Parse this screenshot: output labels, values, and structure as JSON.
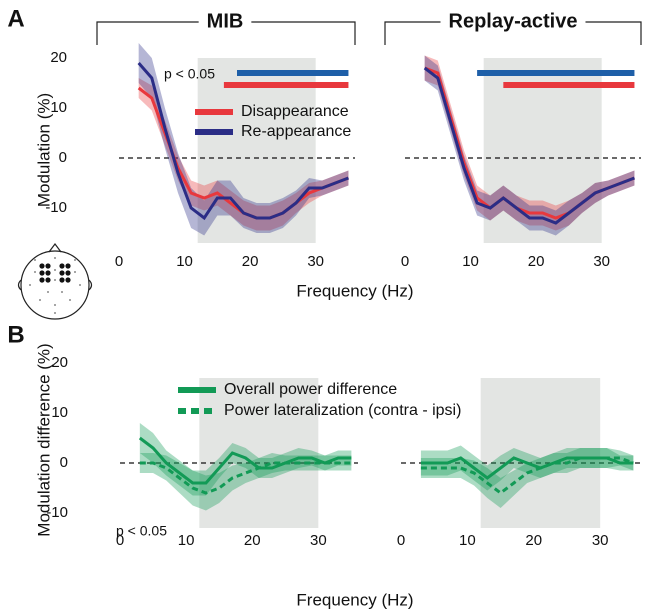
{
  "chart_data": [
    {
      "type": "line",
      "panel_label": "A",
      "title": "MIB",
      "xlabel": "Frequency (Hz)",
      "ylabel": "Modulation (%)",
      "annotation": "p < 0.05",
      "xlim": [
        0,
        36
      ],
      "ylim": [
        -17,
        23
      ],
      "xticks": [
        0,
        10,
        20,
        30
      ],
      "yticks": [
        -10,
        0,
        10,
        20
      ],
      "zero_line": true,
      "shade": [
        12,
        30
      ],
      "x": [
        3,
        5,
        7,
        9,
        11,
        13,
        15,
        17,
        19,
        21,
        23,
        25,
        27,
        29,
        31,
        33,
        35
      ],
      "series": [
        {
          "name": "Disappearance",
          "color": "#e8383d",
          "sig_color": "#e8383d",
          "sig": [
            16,
            35
          ],
          "values": [
            14,
            12,
            5,
            -2,
            -7,
            -8,
            -7,
            -9,
            -11,
            -12,
            -12,
            -11,
            -9,
            -7,
            -6,
            -5,
            -4
          ],
          "error": [
            2,
            2.5,
            2.5,
            2.5,
            2.5,
            2.5,
            2.5,
            2.5,
            2.5,
            2.5,
            2.5,
            2.5,
            2,
            2,
            1.5,
            1.5,
            1.5
          ]
        },
        {
          "name": "Re-appearance",
          "color": "#2b2d86",
          "sig_color": "#1e5fa8",
          "sig": [
            18,
            35
          ],
          "values": [
            19,
            16,
            6,
            -3,
            -10,
            -12,
            -8,
            -8,
            -11,
            -12,
            -12,
            -11,
            -9,
            -6,
            -6,
            -5,
            -4
          ],
          "error": [
            4,
            4,
            4,
            4,
            4,
            3.5,
            3.5,
            3.5,
            3,
            3,
            3,
            3,
            2.5,
            2,
            1.5,
            1.5,
            1.5
          ]
        }
      ]
    },
    {
      "type": "line",
      "title": "Replay-active",
      "xlim": [
        0,
        36
      ],
      "ylim": [
        -17,
        23
      ],
      "xticks": [
        0,
        10,
        20,
        30
      ],
      "zero_line": true,
      "shade": [
        12,
        30
      ],
      "x": [
        3,
        5,
        7,
        9,
        11,
        13,
        15,
        17,
        19,
        21,
        23,
        25,
        27,
        29,
        31,
        33,
        35
      ],
      "series": [
        {
          "color": "#e8383d",
          "sig_color": "#e8383d",
          "sig": [
            15,
            35
          ],
          "values": [
            18,
            17,
            8,
            -1,
            -8,
            -10,
            -8,
            -10,
            -11,
            -11,
            -12,
            -11,
            -9,
            -7,
            -6,
            -5,
            -4
          ],
          "error": [
            2.5,
            2.5,
            2.5,
            2.5,
            2.5,
            2.5,
            2.5,
            2.5,
            2.5,
            2.5,
            2.5,
            2.5,
            2,
            2,
            1.5,
            1.5,
            1.5
          ]
        },
        {
          "color": "#2b2d86",
          "sig_color": "#1e5fa8",
          "sig": [
            11,
            35
          ],
          "values": [
            18,
            16,
            7,
            -2,
            -9,
            -10,
            -8,
            -10,
            -12,
            -12,
            -13,
            -11,
            -9,
            -7,
            -6,
            -5,
            -4
          ],
          "error": [
            2.5,
            2.5,
            2.5,
            2.5,
            2.5,
            2.5,
            2.5,
            2.5,
            2.5,
            2.5,
            2.5,
            2.5,
            2,
            2,
            1.5,
            1.5,
            1.5
          ]
        }
      ]
    },
    {
      "type": "line",
      "panel_label": "B",
      "xlabel": "Frequency (Hz)",
      "ylabel": "Modulation difference (%)",
      "annotation": "p < 0.05",
      "xlim": [
        0,
        36
      ],
      "ylim": [
        -13,
        20
      ],
      "xticks": [
        0,
        10,
        20,
        30
      ],
      "yticks": [
        -10,
        0,
        10,
        20
      ],
      "zero_line": true,
      "shade": [
        12,
        30
      ],
      "x": [
        3,
        5,
        7,
        9,
        11,
        13,
        15,
        17,
        19,
        21,
        23,
        25,
        27,
        29,
        31,
        33,
        35
      ],
      "series": [
        {
          "name": "Overall power difference",
          "color": "#129a56",
          "dashed": false,
          "values": [
            5,
            3,
            0,
            -2,
            -4,
            -4,
            -1,
            2,
            1,
            -1,
            -1,
            0,
            1,
            1,
            0,
            1,
            1
          ],
          "error": [
            3,
            3,
            2.5,
            2.5,
            2.5,
            2.5,
            2,
            2,
            2,
            2,
            2,
            2,
            2,
            1.5,
            1.5,
            1.5,
            1.5
          ]
        },
        {
          "name": "Power lateralization (contra - ipsi)",
          "color": "#129a56",
          "dashed": true,
          "values": [
            0,
            0,
            -1,
            -3,
            -5,
            -6,
            -5,
            -3,
            -2,
            -1,
            0,
            0,
            0,
            0,
            0,
            0,
            0
          ],
          "error": [
            2,
            2,
            2.5,
            3,
            3.5,
            3.5,
            3,
            2.5,
            2,
            2,
            2,
            1.5,
            1.5,
            1.5,
            1.5,
            1.5,
            1.5
          ]
        }
      ]
    },
    {
      "type": "line",
      "xlim": [
        0,
        36
      ],
      "ylim": [
        -13,
        20
      ],
      "xticks": [
        0,
        10,
        20,
        30
      ],
      "zero_line": true,
      "shade": [
        12,
        30
      ],
      "x": [
        3,
        5,
        7,
        9,
        11,
        13,
        15,
        17,
        19,
        21,
        23,
        25,
        27,
        29,
        31,
        33,
        35
      ],
      "series": [
        {
          "color": "#129a56",
          "dashed": false,
          "values": [
            0,
            0,
            0,
            1,
            -1,
            -3,
            -1,
            1,
            0,
            -1,
            0,
            1,
            1,
            1,
            1,
            0,
            0
          ],
          "error": [
            2.5,
            2.5,
            2.5,
            2.5,
            2.5,
            2.5,
            2.5,
            2,
            2,
            2,
            2,
            2,
            2,
            2,
            2,
            1.5,
            1.5
          ]
        },
        {
          "color": "#129a56",
          "dashed": true,
          "values": [
            -1,
            -1,
            -1,
            -1,
            -2,
            -4,
            -6,
            -4,
            -2,
            -1,
            0,
            0,
            1,
            1,
            1,
            1,
            0
          ],
          "error": [
            2,
            2,
            2,
            2,
            2.5,
            3,
            3,
            2.5,
            2,
            2,
            2,
            2,
            2,
            2,
            2,
            1.5,
            1.5
          ]
        }
      ]
    }
  ]
}
